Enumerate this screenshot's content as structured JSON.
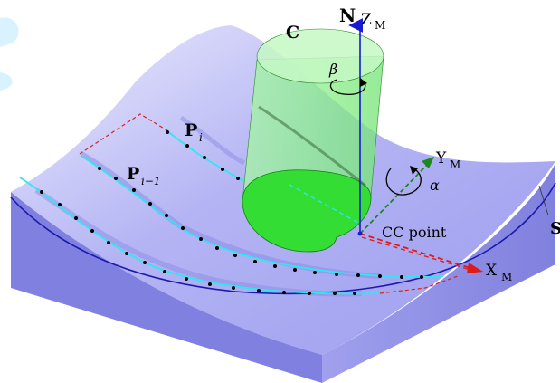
{
  "labels": {
    "normal": "N",
    "z_axis": "Z",
    "z_sub": "M",
    "cutter": "C",
    "beta": "β",
    "alpha": "α",
    "point_i": "P",
    "point_i_sub": "i",
    "point_i1": "P",
    "point_i1_sub": "i−1",
    "y_axis": "Y",
    "y_sub": "M",
    "x_axis": "X",
    "x_sub": "M",
    "cc_point": "CC point",
    "surface": "S"
  },
  "colors": {
    "surface_fill": "#a8a8f0",
    "surface_light": "#d6d6fb",
    "surface_side": "#7b7be0",
    "toolpath": "#2ee8f0",
    "curve": "#1a1ab0",
    "cutter_body": "#8ef08e",
    "cutter_tip": "#33dd33",
    "normal_axis": "#1a1ad6",
    "x_axis": "#e01a1a",
    "y_axis": "#1a8a1a",
    "dash_red": "#e02020",
    "ghost": "#00b7ff"
  }
}
